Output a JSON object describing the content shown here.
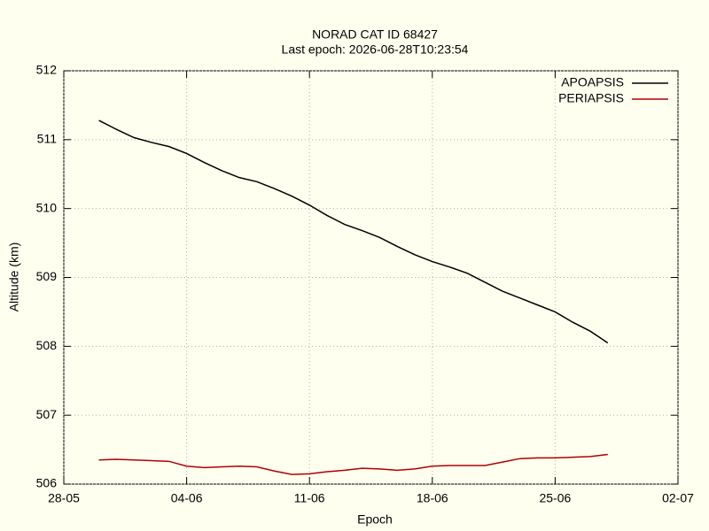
{
  "chart_data": {
    "type": "line",
    "title": "NORAD CAT ID 68427",
    "subtitle": "Last epoch: 2026-06-28T10:23:54",
    "x_label": "Epoch",
    "y_label": "Altitude (km)",
    "x": [
      "30-05",
      "31-05",
      "01-06",
      "02-06",
      "03-06",
      "04-06",
      "05-06",
      "06-06",
      "07-06",
      "08-06",
      "09-06",
      "10-06",
      "11-06",
      "12-06",
      "13-06",
      "14-06",
      "15-06",
      "16-06",
      "17-06",
      "18-06",
      "19-06",
      "20-06",
      "21-06",
      "22-06",
      "23-06",
      "24-06",
      "25-06",
      "26-06",
      "27-06",
      "28-06"
    ],
    "series": [
      {
        "name": "APOAPSIS",
        "color": "#000000",
        "values": [
          511.28,
          511.15,
          511.03,
          510.96,
          510.9,
          510.8,
          510.67,
          510.55,
          510.45,
          510.39,
          510.29,
          510.18,
          510.05,
          509.9,
          509.77,
          509.68,
          509.58,
          509.45,
          509.33,
          509.23,
          509.15,
          509.06,
          508.93,
          508.8,
          508.7,
          508.6,
          508.5,
          508.35,
          508.22,
          508.05
        ]
      },
      {
        "name": "PERIAPSIS",
        "color": "#b00000",
        "values": [
          506.35,
          506.36,
          506.35,
          506.34,
          506.33,
          506.26,
          506.24,
          506.25,
          506.26,
          506.25,
          506.19,
          506.14,
          506.15,
          506.18,
          506.2,
          506.23,
          506.22,
          506.2,
          506.22,
          506.26,
          506.27,
          506.27,
          506.27,
          506.32,
          506.37,
          506.38,
          506.38,
          506.39,
          506.4,
          506.43
        ]
      }
    ],
    "xlim": [
      "28-05",
      "02-07"
    ],
    "xticks": [
      "28-05",
      "04-06",
      "11-06",
      "18-06",
      "25-06",
      "02-07"
    ],
    "ylim": [
      506,
      512
    ],
    "yticks": [
      506,
      507,
      508,
      509,
      510,
      511,
      512
    ],
    "grid": true,
    "legend": "top-right"
  }
}
